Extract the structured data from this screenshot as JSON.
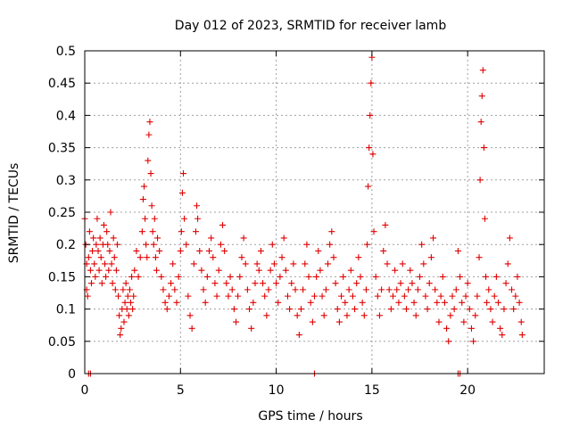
{
  "chart_data": {
    "type": "scatter",
    "title": "Day 012 of 2023, SRMTID for receiver lamb",
    "xlabel": "GPS time / hours",
    "ylabel": "SRMTID / TECUs",
    "xlim": [
      0,
      24
    ],
    "ylim": [
      0,
      0.5
    ],
    "x_ticks": [
      0,
      5,
      10,
      15,
      20
    ],
    "x_tick_labels": [
      "0",
      "5",
      "10",
      "15",
      "20"
    ],
    "y_ticks": [
      0,
      0.05,
      0.1,
      0.15,
      0.2,
      0.25,
      0.3,
      0.35,
      0.4,
      0.45,
      0.5
    ],
    "y_tick_labels": [
      "0",
      "0.05",
      "0.1",
      "0.15",
      "0.2",
      "0.25",
      "0.3",
      "0.35",
      "0.4",
      "0.45",
      "0.5"
    ],
    "grid": true,
    "marker": "+",
    "marker_color": "#e00000",
    "series": [
      {
        "name": "SRMTID",
        "points": [
          [
            0.0,
            0.24
          ],
          [
            0.05,
            0.2
          ],
          [
            0.1,
            0.17
          ],
          [
            0.1,
            0.13
          ],
          [
            0.15,
            0.12
          ],
          [
            0.2,
            0.18
          ],
          [
            0.25,
            0.22
          ],
          [
            0.3,
            0.16
          ],
          [
            0.35,
            0.14
          ],
          [
            0.4,
            0.19
          ],
          [
            0.45,
            0.21
          ],
          [
            0.5,
            0.17
          ],
          [
            0.55,
            0.15
          ],
          [
            0.6,
            0.2
          ],
          [
            0.65,
            0.24
          ],
          [
            0.7,
            0.19
          ],
          [
            0.75,
            0.16
          ],
          [
            0.8,
            0.21
          ],
          [
            0.85,
            0.18
          ],
          [
            0.9,
            0.14
          ],
          [
            0.95,
            0.2
          ],
          [
            1.0,
            0.23
          ],
          [
            1.05,
            0.17
          ],
          [
            1.1,
            0.15
          ],
          [
            1.15,
            0.22
          ],
          [
            1.2,
            0.2
          ],
          [
            1.25,
            0.16
          ],
          [
            1.3,
            0.19
          ],
          [
            1.35,
            0.25
          ],
          [
            1.4,
            0.17
          ],
          [
            1.45,
            0.14
          ],
          [
            1.5,
            0.21
          ],
          [
            1.55,
            0.18
          ],
          [
            1.6,
            0.13
          ],
          [
            1.65,
            0.16
          ],
          [
            1.7,
            0.2
          ],
          [
            1.75,
            0.12
          ],
          [
            1.8,
            0.09
          ],
          [
            1.85,
            0.06
          ],
          [
            1.9,
            0.07
          ],
          [
            1.95,
            0.1
          ],
          [
            2.0,
            0.13
          ],
          [
            2.05,
            0.08
          ],
          [
            2.1,
            0.11
          ],
          [
            2.15,
            0.14
          ],
          [
            2.2,
            0.1
          ],
          [
            2.25,
            0.12
          ],
          [
            2.3,
            0.09
          ],
          [
            2.35,
            0.13
          ],
          [
            2.4,
            0.11
          ],
          [
            2.45,
            0.15
          ],
          [
            2.5,
            0.1
          ],
          [
            2.55,
            0.12
          ],
          [
            2.6,
            0.16
          ],
          [
            2.7,
            0.19
          ],
          [
            2.8,
            0.15
          ],
          [
            2.9,
            0.18
          ],
          [
            3.0,
            0.22
          ],
          [
            3.05,
            0.27
          ],
          [
            3.1,
            0.29
          ],
          [
            3.15,
            0.24
          ],
          [
            3.2,
            0.2
          ],
          [
            3.25,
            0.18
          ],
          [
            3.3,
            0.33
          ],
          [
            3.35,
            0.37
          ],
          [
            3.4,
            0.39
          ],
          [
            3.45,
            0.31
          ],
          [
            3.5,
            0.26
          ],
          [
            3.55,
            0.22
          ],
          [
            3.6,
            0.2
          ],
          [
            3.65,
            0.24
          ],
          [
            3.7,
            0.18
          ],
          [
            3.75,
            0.16
          ],
          [
            3.8,
            0.21
          ],
          [
            3.9,
            0.19
          ],
          [
            4.0,
            0.15
          ],
          [
            4.1,
            0.13
          ],
          [
            4.2,
            0.11
          ],
          [
            4.3,
            0.1
          ],
          [
            4.4,
            0.12
          ],
          [
            4.5,
            0.14
          ],
          [
            4.6,
            0.17
          ],
          [
            4.7,
            0.13
          ],
          [
            4.8,
            0.11
          ],
          [
            4.9,
            0.15
          ],
          [
            5.0,
            0.19
          ],
          [
            5.05,
            0.22
          ],
          [
            5.1,
            0.28
          ],
          [
            5.15,
            0.31
          ],
          [
            5.2,
            0.24
          ],
          [
            5.3,
            0.2
          ],
          [
            5.4,
            0.12
          ],
          [
            5.5,
            0.09
          ],
          [
            5.6,
            0.07
          ],
          [
            5.7,
            0.17
          ],
          [
            5.8,
            0.22
          ],
          [
            5.85,
            0.26
          ],
          [
            5.9,
            0.24
          ],
          [
            6.0,
            0.19
          ],
          [
            6.1,
            0.16
          ],
          [
            6.2,
            0.13
          ],
          [
            6.3,
            0.11
          ],
          [
            6.4,
            0.15
          ],
          [
            6.5,
            0.19
          ],
          [
            6.6,
            0.21
          ],
          [
            6.7,
            0.18
          ],
          [
            6.8,
            0.14
          ],
          [
            6.9,
            0.12
          ],
          [
            7.0,
            0.16
          ],
          [
            7.1,
            0.2
          ],
          [
            7.2,
            0.23
          ],
          [
            7.3,
            0.19
          ],
          [
            7.4,
            0.14
          ],
          [
            7.5,
            0.12
          ],
          [
            7.6,
            0.15
          ],
          [
            7.7,
            0.13
          ],
          [
            7.8,
            0.1
          ],
          [
            7.9,
            0.08
          ],
          [
            8.0,
            0.12
          ],
          [
            8.1,
            0.15
          ],
          [
            8.2,
            0.18
          ],
          [
            8.3,
            0.21
          ],
          [
            8.4,
            0.17
          ],
          [
            8.5,
            0.13
          ],
          [
            8.6,
            0.1
          ],
          [
            8.7,
            0.07
          ],
          [
            8.8,
            0.11
          ],
          [
            8.9,
            0.14
          ],
          [
            9.0,
            0.17
          ],
          [
            9.1,
            0.16
          ],
          [
            9.2,
            0.19
          ],
          [
            9.3,
            0.14
          ],
          [
            9.4,
            0.12
          ],
          [
            9.5,
            0.09
          ],
          [
            9.6,
            0.13
          ],
          [
            9.7,
            0.16
          ],
          [
            9.8,
            0.2
          ],
          [
            9.9,
            0.17
          ],
          [
            10.0,
            0.14
          ],
          [
            10.1,
            0.11
          ],
          [
            10.2,
            0.15
          ],
          [
            10.3,
            0.18
          ],
          [
            10.4,
            0.21
          ],
          [
            10.5,
            0.16
          ],
          [
            10.6,
            0.12
          ],
          [
            10.7,
            0.1
          ],
          [
            10.8,
            0.14
          ],
          [
            10.9,
            0.17
          ],
          [
            11.0,
            0.13
          ],
          [
            11.1,
            0.09
          ],
          [
            11.2,
            0.06
          ],
          [
            11.3,
            0.1
          ],
          [
            11.4,
            0.13
          ],
          [
            11.5,
            0.17
          ],
          [
            11.6,
            0.2
          ],
          [
            11.7,
            0.15
          ],
          [
            11.8,
            0.11
          ],
          [
            11.9,
            0.08
          ],
          [
            12.0,
            0.12
          ],
          [
            12.1,
            0.15
          ],
          [
            12.2,
            0.19
          ],
          [
            12.3,
            0.16
          ],
          [
            12.4,
            0.12
          ],
          [
            12.5,
            0.09
          ],
          [
            12.6,
            0.13
          ],
          [
            12.7,
            0.17
          ],
          [
            12.8,
            0.2
          ],
          [
            12.9,
            0.22
          ],
          [
            13.0,
            0.18
          ],
          [
            13.1,
            0.14
          ],
          [
            13.2,
            0.1
          ],
          [
            13.3,
            0.08
          ],
          [
            13.4,
            0.12
          ],
          [
            13.5,
            0.15
          ],
          [
            13.6,
            0.11
          ],
          [
            13.7,
            0.09
          ],
          [
            13.8,
            0.13
          ],
          [
            13.9,
            0.16
          ],
          [
            14.0,
            0.12
          ],
          [
            14.1,
            0.1
          ],
          [
            14.2,
            0.14
          ],
          [
            14.3,
            0.18
          ],
          [
            14.4,
            0.15
          ],
          [
            14.5,
            0.11
          ],
          [
            14.6,
            0.09
          ],
          [
            14.7,
            0.13
          ],
          [
            14.75,
            0.2
          ],
          [
            14.8,
            0.29
          ],
          [
            14.85,
            0.35
          ],
          [
            14.9,
            0.4
          ],
          [
            14.95,
            0.45
          ],
          [
            15.0,
            0.49
          ],
          [
            15.05,
            0.34
          ],
          [
            15.1,
            0.22
          ],
          [
            15.2,
            0.15
          ],
          [
            15.3,
            0.12
          ],
          [
            15.4,
            0.09
          ],
          [
            15.5,
            0.13
          ],
          [
            15.6,
            0.19
          ],
          [
            15.7,
            0.23
          ],
          [
            15.8,
            0.17
          ],
          [
            15.9,
            0.13
          ],
          [
            16.0,
            0.1
          ],
          [
            16.1,
            0.12
          ],
          [
            16.2,
            0.16
          ],
          [
            16.3,
            0.13
          ],
          [
            16.4,
            0.11
          ],
          [
            16.5,
            0.14
          ],
          [
            16.6,
            0.17
          ],
          [
            16.7,
            0.12
          ],
          [
            16.8,
            0.1
          ],
          [
            16.9,
            0.13
          ],
          [
            17.0,
            0.16
          ],
          [
            17.1,
            0.14
          ],
          [
            17.2,
            0.11
          ],
          [
            17.3,
            0.09
          ],
          [
            17.4,
            0.13
          ],
          [
            17.5,
            0.15
          ],
          [
            17.6,
            0.2
          ],
          [
            17.7,
            0.17
          ],
          [
            17.8,
            0.12
          ],
          [
            17.9,
            0.1
          ],
          [
            18.0,
            0.14
          ],
          [
            18.1,
            0.18
          ],
          [
            18.2,
            0.21
          ],
          [
            18.3,
            0.13
          ],
          [
            18.4,
            0.11
          ],
          [
            18.5,
            0.08
          ],
          [
            18.6,
            0.12
          ],
          [
            18.7,
            0.15
          ],
          [
            18.8,
            0.11
          ],
          [
            18.9,
            0.07
          ],
          [
            19.0,
            0.05
          ],
          [
            19.1,
            0.09
          ],
          [
            19.2,
            0.12
          ],
          [
            19.3,
            0.1
          ],
          [
            19.4,
            0.13
          ],
          [
            19.5,
            0.19
          ],
          [
            19.6,
            0.15
          ],
          [
            19.7,
            0.11
          ],
          [
            19.8,
            0.08
          ],
          [
            19.9,
            0.12
          ],
          [
            20.0,
            0.14
          ],
          [
            20.1,
            0.1
          ],
          [
            20.2,
            0.07
          ],
          [
            20.3,
            0.05
          ],
          [
            20.4,
            0.09
          ],
          [
            20.5,
            0.12
          ],
          [
            20.6,
            0.18
          ],
          [
            20.65,
            0.3
          ],
          [
            20.7,
            0.39
          ],
          [
            20.75,
            0.43
          ],
          [
            20.8,
            0.47
          ],
          [
            20.85,
            0.35
          ],
          [
            20.9,
            0.24
          ],
          [
            20.95,
            0.15
          ],
          [
            21.0,
            0.11
          ],
          [
            21.1,
            0.13
          ],
          [
            21.2,
            0.1
          ],
          [
            21.3,
            0.08
          ],
          [
            21.4,
            0.12
          ],
          [
            21.5,
            0.15
          ],
          [
            21.6,
            0.11
          ],
          [
            21.7,
            0.07
          ],
          [
            21.8,
            0.06
          ],
          [
            21.9,
            0.1
          ],
          [
            22.0,
            0.14
          ],
          [
            22.1,
            0.17
          ],
          [
            22.2,
            0.21
          ],
          [
            22.3,
            0.13
          ],
          [
            22.4,
            0.1
          ],
          [
            22.5,
            0.12
          ],
          [
            22.6,
            0.15
          ],
          [
            22.7,
            0.11
          ],
          [
            22.8,
            0.08
          ],
          [
            22.85,
            0.06
          ],
          [
            0.2,
            0.0
          ],
          [
            0.3,
            0.0
          ],
          [
            12.0,
            0.0
          ],
          [
            19.5,
            0.0
          ],
          [
            19.6,
            0.0
          ]
        ]
      }
    ]
  }
}
